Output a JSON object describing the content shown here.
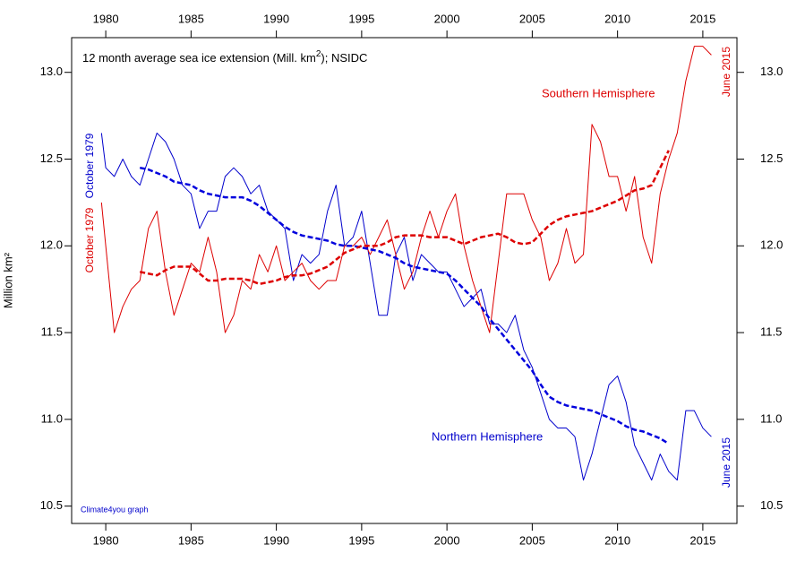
{
  "chart_data": {
    "type": "line",
    "title": [
      "12 month average sea ice extension (Mill. km",
      "2",
      "); NSIDC"
    ],
    "y_label": "Million km²",
    "annotations": {
      "southern": "Southern Hemisphere",
      "northern": "Northern Hemisphere",
      "start_north": "October 1979",
      "start_south": "October 1979",
      "end_south": "June 2015",
      "end_north": "June 2015",
      "credit": "Climate4you graph"
    },
    "xlim": [
      1978,
      2017
    ],
    "xticks": [
      1980,
      1985,
      1990,
      1995,
      2000,
      2005,
      2010,
      2015
    ],
    "ylim": [
      10.4,
      13.2
    ],
    "yticks": [
      10.5,
      {
        "value": 11,
        "label": "11.0"
      },
      11.5,
      {
        "value": 12,
        "label": "12.0"
      },
      12.5,
      {
        "value": 13,
        "label": "13.0"
      }
    ],
    "y2lim": [
      10.4,
      13.2
    ],
    "y2ticks": [
      10.5,
      {
        "value": 11,
        "label": "11.0"
      },
      11.5,
      {
        "value": 12,
        "label": "12.0"
      },
      12.5,
      {
        "value": 13,
        "label": "13.0"
      }
    ],
    "x": [
      1979.75,
      1980,
      1980.5,
      1981,
      1981.5,
      1982,
      1982.5,
      1983,
      1983.5,
      1984,
      1984.5,
      1985,
      1985.5,
      1986,
      1986.5,
      1987,
      1987.5,
      1988,
      1988.5,
      1989,
      1989.5,
      1990,
      1990.5,
      1991,
      1991.5,
      1992,
      1992.5,
      1993,
      1993.5,
      1994,
      1994.5,
      1995,
      1995.5,
      1996,
      1996.5,
      1997,
      1997.5,
      1998,
      1998.5,
      1999,
      1999.5,
      2000,
      2000.5,
      2001,
      2001.5,
      2002,
      2002.5,
      2003,
      2003.5,
      2004,
      2004.5,
      2005,
      2005.5,
      2006,
      2006.5,
      2007,
      2007.5,
      2008,
      2008.5,
      2009,
      2009.5,
      2010,
      2010.5,
      2011,
      2011.5,
      2012,
      2012.5,
      2013,
      2013.5,
      2014,
      2014.5,
      2015,
      2015.5
    ],
    "series": [
      {
        "color": "#0000cc",
        "dashed": false,
        "values": [
          12.65,
          12.45,
          12.4,
          12.5,
          12.4,
          12.35,
          12.5,
          12.65,
          12.6,
          12.5,
          12.35,
          12.3,
          12.1,
          12.2,
          12.2,
          12.4,
          12.45,
          12.4,
          12.3,
          12.35,
          12.2,
          12.15,
          12.1,
          11.8,
          11.95,
          11.9,
          11.95,
          12.2,
          12.35,
          12.0,
          12.05,
          12.2,
          11.9,
          11.6,
          11.6,
          11.95,
          12.05,
          11.8,
          11.95,
          11.9,
          11.85,
          11.85,
          11.75,
          11.65,
          11.7,
          11.75,
          11.55,
          11.55,
          11.5,
          11.6,
          11.4,
          11.3,
          11.15,
          11.0,
          10.95,
          10.95,
          10.9,
          10.65,
          10.8,
          11.0,
          11.2,
          11.25,
          11.1,
          10.85,
          10.75,
          10.65,
          10.8,
          10.7,
          10.65,
          11.05,
          11.05,
          10.95,
          10.9
        ]
      },
      {
        "color": "#dd0000",
        "dashed": false,
        "values": [
          12.25,
          12.0,
          11.5,
          11.65,
          11.75,
          11.8,
          12.1,
          12.2,
          11.85,
          11.6,
          11.75,
          11.9,
          11.85,
          12.05,
          11.85,
          11.5,
          11.6,
          11.8,
          11.75,
          11.95,
          11.85,
          12.0,
          11.8,
          11.85,
          11.9,
          11.8,
          11.75,
          11.8,
          11.8,
          12.0,
          12.0,
          12.05,
          11.95,
          12.05,
          12.15,
          11.95,
          11.75,
          11.85,
          12.05,
          12.2,
          12.05,
          12.2,
          12.3,
          12.0,
          11.8,
          11.65,
          11.5,
          11.9,
          12.3,
          12.3,
          12.3,
          12.15,
          12.05,
          11.8,
          11.9,
          12.1,
          11.9,
          11.95,
          12.7,
          12.6,
          12.4,
          12.4,
          12.2,
          12.4,
          12.05,
          11.9,
          12.3,
          12.5,
          12.65,
          12.95,
          13.15,
          13.15,
          13.1
        ]
      },
      {
        "color": "#0000dd",
        "dashed": true,
        "values": [
          null,
          null,
          null,
          null,
          null,
          12.45,
          12.44,
          12.42,
          12.4,
          12.37,
          12.36,
          12.35,
          12.32,
          12.3,
          12.29,
          12.28,
          12.28,
          12.28,
          12.26,
          12.23,
          12.19,
          12.15,
          12.11,
          12.08,
          12.06,
          12.05,
          12.04,
          12.03,
          12.01,
          12.0,
          12.0,
          11.99,
          11.98,
          11.97,
          11.95,
          11.93,
          11.9,
          11.88,
          11.87,
          11.86,
          11.85,
          11.84,
          11.8,
          11.75,
          11.7,
          11.65,
          11.58,
          11.52,
          11.46,
          11.4,
          11.34,
          11.28,
          11.2,
          11.13,
          11.1,
          11.08,
          11.07,
          11.06,
          11.05,
          11.03,
          11.01,
          10.99,
          10.96,
          10.94,
          10.93,
          10.91,
          10.89,
          10.86,
          null,
          null,
          null,
          null,
          null
        ]
      },
      {
        "color": "#dd0000",
        "dashed": true,
        "values": [
          null,
          null,
          null,
          null,
          null,
          11.85,
          11.84,
          11.83,
          11.86,
          11.88,
          11.88,
          11.88,
          11.84,
          11.8,
          11.8,
          11.81,
          11.81,
          11.81,
          11.8,
          11.78,
          11.79,
          11.8,
          11.82,
          11.83,
          11.83,
          11.84,
          11.86,
          11.88,
          11.92,
          11.96,
          11.98,
          12.0,
          12.0,
          12.0,
          12.02,
          12.05,
          12.06,
          12.06,
          12.06,
          12.05,
          12.05,
          12.05,
          12.03,
          12.01,
          12.03,
          12.05,
          12.06,
          12.07,
          12.05,
          12.02,
          12.01,
          12.02,
          12.07,
          12.12,
          12.15,
          12.17,
          12.18,
          12.19,
          12.2,
          12.22,
          12.24,
          12.26,
          12.29,
          12.32,
          12.33,
          12.35,
          12.45,
          12.55,
          null,
          null,
          null,
          null,
          null
        ]
      }
    ]
  }
}
